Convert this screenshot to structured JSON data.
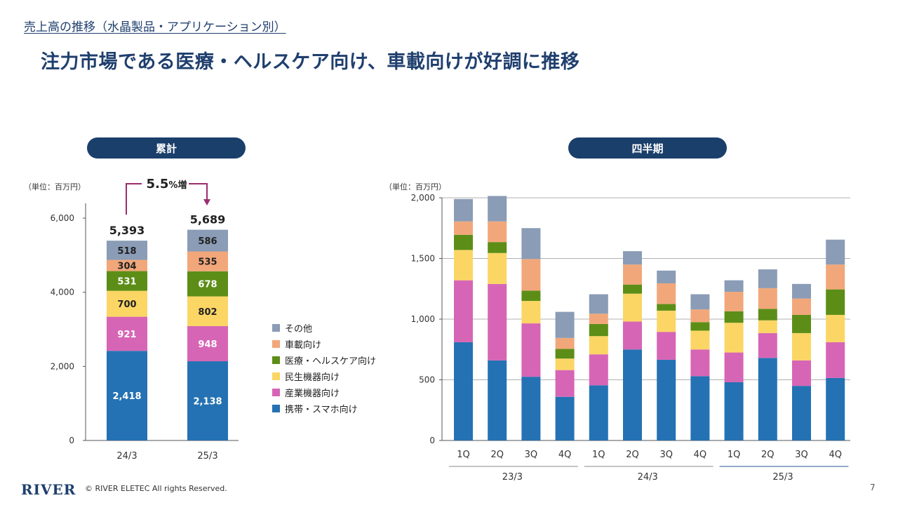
{
  "page": {
    "breadcrumb": "売上高の推移（水晶製品・アプリケーション別）",
    "headline": "注力市場である医療・ヘルスケア向け、車載向けが好調に推移",
    "footer": {
      "logo": "RIVER",
      "copyright": "© RIVER ELETEC All rights Reserved.",
      "page_number": "7"
    }
  },
  "colors": {
    "携帯・スマホ向け": "#2472b3",
    "産業機器向け": "#d765b5",
    "民生機器向け": "#fbd665",
    "医療・ヘルスケア向け": "#5c8e17",
    "車載向け": "#f2a77a",
    "その他": "#8a9cb6",
    "pill": "#1a3f6b",
    "arrow": "#9b2c6e"
  },
  "legend": [
    "その他",
    "車載向け",
    "医療・ヘルスケア向け",
    "民生機器向け",
    "産業機器向け",
    "携帯・スマホ向け"
  ],
  "chart_data": [
    {
      "type": "bar",
      "stacked": true,
      "title": "累計",
      "unit_label": "（単位：百万円）",
      "categories": [
        "24/3",
        "25/3"
      ],
      "series": [
        {
          "name": "携帯・スマホ向け",
          "values": [
            2418,
            2138
          ]
        },
        {
          "name": "産業機器向け",
          "values": [
            921,
            948
          ]
        },
        {
          "name": "民生機器向け",
          "values": [
            700,
            802
          ]
        },
        {
          "name": "医療・ヘルスケア向け",
          "values": [
            531,
            678
          ]
        },
        {
          "name": "車載向け",
          "values": [
            304,
            535
          ]
        },
        {
          "name": "その他",
          "values": [
            518,
            586
          ]
        }
      ],
      "totals": [
        "5,393",
        "5,689"
      ],
      "segment_labels": [
        [
          "2,418",
          "921",
          "700",
          "531",
          "304",
          "518"
        ],
        [
          "2,138",
          "948",
          "802",
          "678",
          "535",
          "586"
        ]
      ],
      "growth": {
        "value": "5.5",
        "suffix": "%増"
      },
      "ylim": [
        0,
        6000
      ],
      "yticks": [
        0,
        2000,
        4000,
        6000
      ],
      "ytick_labels": [
        "0",
        "2,000",
        "4,000",
        "6,000"
      ],
      "grid": false
    },
    {
      "type": "bar",
      "stacked": true,
      "title": "四半期",
      "unit_label": "（単位：百万円）",
      "categories": [
        "1Q",
        "2Q",
        "3Q",
        "4Q",
        "1Q",
        "2Q",
        "3Q",
        "4Q",
        "1Q",
        "2Q",
        "3Q",
        "4Q"
      ],
      "groups": [
        "23/3",
        "24/3",
        "25/3"
      ],
      "series": [
        {
          "name": "携帯・スマホ向け",
          "values": [
            810,
            660,
            525,
            360,
            455,
            750,
            665,
            530,
            480,
            680,
            450,
            515
          ]
        },
        {
          "name": "産業機器向け",
          "values": [
            510,
            630,
            440,
            220,
            255,
            230,
            230,
            220,
            245,
            205,
            210,
            295
          ]
        },
        {
          "name": "民生機器向け",
          "values": [
            250,
            255,
            185,
            95,
            150,
            230,
            175,
            155,
            245,
            105,
            225,
            225
          ]
        },
        {
          "name": "医療・ヘルスケア向け",
          "values": [
            125,
            90,
            85,
            80,
            100,
            75,
            55,
            70,
            95,
            95,
            150,
            210
          ]
        },
        {
          "name": "車載向け",
          "values": [
            110,
            170,
            260,
            90,
            85,
            165,
            170,
            105,
            160,
            170,
            135,
            205
          ]
        },
        {
          "name": "その他",
          "values": [
            185,
            210,
            255,
            215,
            160,
            110,
            105,
            125,
            95,
            155,
            120,
            205
          ]
        }
      ],
      "ylim": [
        0,
        2000
      ],
      "yticks": [
        0,
        500,
        1000,
        1500,
        2000
      ],
      "ytick_labels": [
        "0",
        "500",
        "1,000",
        "1,500",
        "2,000"
      ],
      "grid": true
    }
  ]
}
